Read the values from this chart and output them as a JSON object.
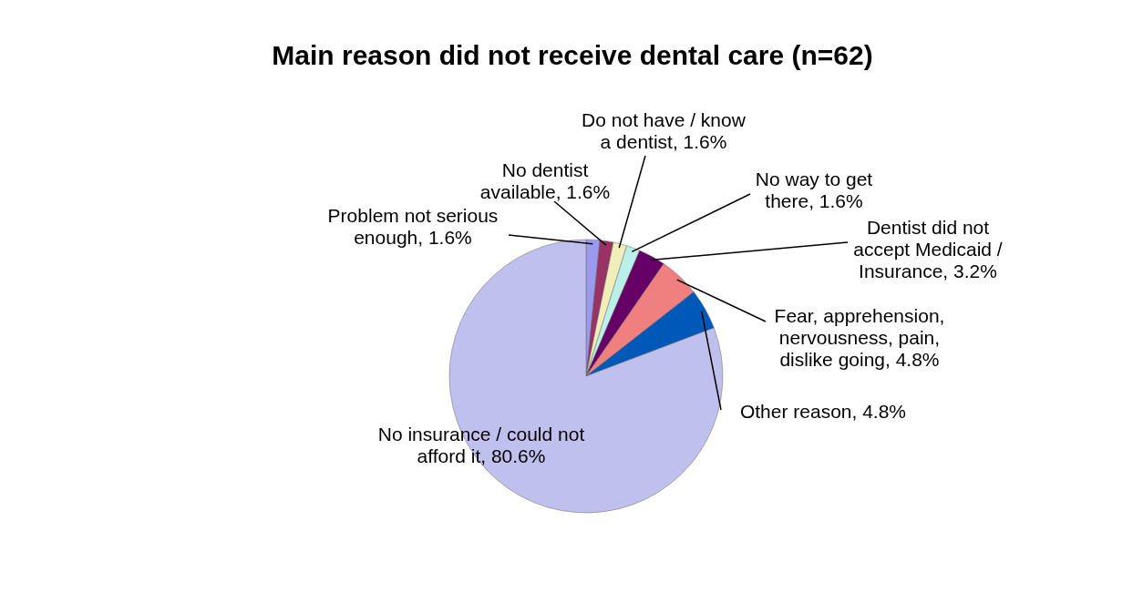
{
  "chart_data": {
    "type": "pie",
    "title": "Main reason did not receive dental care (n=62)",
    "categories": [
      "Problem not serious enough",
      "No dentist available",
      "Do not have / know a dentist",
      "No way to get there",
      "Dentist did not accept Medicaid / Insurance",
      "Fear, apprehension, nervousness, pain, dislike going",
      "Other reason",
      "No insurance / could not afford it"
    ],
    "values": [
      1.6,
      1.6,
      1.6,
      1.6,
      3.2,
      4.8,
      4.8,
      80.6
    ],
    "value_labels": [
      "1.6%",
      "1.6%",
      "1.6%",
      "1.6%",
      "3.2%",
      "4.8%",
      "4.8%",
      "80.6%"
    ],
    "colors": [
      "#9a9aee",
      "#993366",
      "#f0eebb",
      "#bbf0ea",
      "#660066",
      "#f07f7f",
      "#0058b8",
      "#c0c0ee"
    ]
  }
}
